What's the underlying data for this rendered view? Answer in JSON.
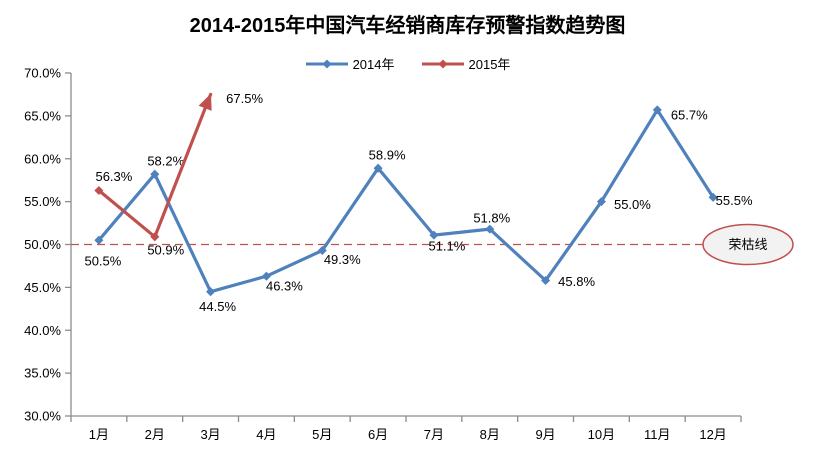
{
  "chart_data": {
    "type": "line",
    "title": "2014-2015年中国汽车经销商库存预警指数趋势图",
    "categories": [
      "1月",
      "2月",
      "3月",
      "4月",
      "5月",
      "6月",
      "7月",
      "8月",
      "9月",
      "10月",
      "11月",
      "12月"
    ],
    "series": [
      {
        "name": "2014年",
        "color": "#4F81BD",
        "values": [
          50.5,
          58.2,
          44.5,
          46.3,
          49.3,
          58.9,
          51.1,
          51.8,
          45.8,
          55.0,
          65.7,
          55.5
        ],
        "label_offsets": [
          [
            4,
            21
          ],
          [
            11,
            -13
          ],
          [
            7,
            15
          ],
          [
            18,
            10
          ],
          [
            20,
            9
          ],
          [
            9,
            -13
          ],
          [
            13,
            11
          ],
          [
            2,
            -11
          ],
          [
            31,
            1
          ],
          [
            31,
            3
          ],
          [
            32,
            5
          ],
          [
            21,
            3
          ]
        ]
      },
      {
        "name": "2015年",
        "color": "#C0504D",
        "values": [
          56.3,
          50.9,
          67.5
        ],
        "arrow_end": true,
        "label_offsets": [
          [
            15,
            -14
          ],
          [
            11,
            13
          ],
          [
            34,
            4
          ]
        ]
      }
    ],
    "ylim": [
      30,
      70
    ],
    "ytick_step": 5,
    "yticks": [
      30,
      35,
      40,
      45,
      50,
      55,
      60,
      65,
      70
    ],
    "value_suffix": "%",
    "legend_position": "top",
    "grid": false,
    "reference_line": {
      "value": 50,
      "label": "荣枯线",
      "color": "#C0504D",
      "style": "dashed"
    },
    "axis_color": "#8C8C8C",
    "ellipse_fill": "#F2F2F2",
    "text_color": "#000000"
  }
}
